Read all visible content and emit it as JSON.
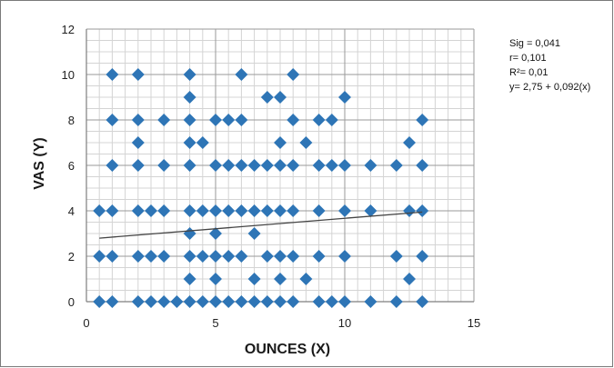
{
  "chart_data": {
    "type": "scatter",
    "title": "",
    "xlabel": "OUNCES (X)",
    "ylabel": "VAS (Y)",
    "xlim": [
      0,
      15
    ],
    "ylim": [
      0,
      12
    ],
    "x_ticks": [
      0,
      5,
      10,
      15
    ],
    "y_ticks": [
      0,
      2,
      4,
      6,
      8,
      10,
      12
    ],
    "grid": true,
    "marker_color": "#2e75b6",
    "trendline": {
      "intercept": 2.75,
      "slope": 0.092,
      "x_range": [
        0.5,
        13
      ]
    },
    "annotations": [
      "Sig = 0,041",
      "r= 0,101",
      "R²= 0,01",
      "y= 2,75 + 0,092(x)"
    ],
    "points": [
      [
        1,
        10
      ],
      [
        2,
        10
      ],
      [
        4,
        10
      ],
      [
        6,
        10
      ],
      [
        8,
        10
      ],
      [
        4,
        9
      ],
      [
        7,
        9
      ],
      [
        7.5,
        9
      ],
      [
        10,
        9
      ],
      [
        1,
        8
      ],
      [
        2,
        8
      ],
      [
        3,
        8
      ],
      [
        4,
        8
      ],
      [
        5,
        8
      ],
      [
        5.5,
        8
      ],
      [
        6,
        8
      ],
      [
        8,
        8
      ],
      [
        9,
        8
      ],
      [
        9.5,
        8
      ],
      [
        13,
        8
      ],
      [
        2,
        7
      ],
      [
        4,
        7
      ],
      [
        4.5,
        7
      ],
      [
        7.5,
        7
      ],
      [
        8.5,
        7
      ],
      [
        12.5,
        7
      ],
      [
        1,
        6
      ],
      [
        2,
        6
      ],
      [
        3,
        6
      ],
      [
        4,
        6
      ],
      [
        5,
        6
      ],
      [
        5.5,
        6
      ],
      [
        6,
        6
      ],
      [
        6.5,
        6
      ],
      [
        7,
        6
      ],
      [
        7.5,
        6
      ],
      [
        8,
        6
      ],
      [
        9,
        6
      ],
      [
        9.5,
        6
      ],
      [
        10,
        6
      ],
      [
        11,
        6
      ],
      [
        12,
        6
      ],
      [
        13,
        6
      ],
      [
        0.5,
        4
      ],
      [
        1,
        4
      ],
      [
        2,
        4
      ],
      [
        2.5,
        4
      ],
      [
        3,
        4
      ],
      [
        4,
        4
      ],
      [
        4.5,
        4
      ],
      [
        5,
        4
      ],
      [
        5.5,
        4
      ],
      [
        6,
        4
      ],
      [
        6.5,
        4
      ],
      [
        7,
        4
      ],
      [
        7.5,
        4
      ],
      [
        8,
        4
      ],
      [
        9,
        4
      ],
      [
        10,
        4
      ],
      [
        11,
        4
      ],
      [
        12.5,
        4
      ],
      [
        13,
        4
      ],
      [
        4,
        3
      ],
      [
        5,
        3
      ],
      [
        6.5,
        3
      ],
      [
        0.5,
        2
      ],
      [
        1,
        2
      ],
      [
        2,
        2
      ],
      [
        2.5,
        2
      ],
      [
        3,
        2
      ],
      [
        4,
        2
      ],
      [
        4.5,
        2
      ],
      [
        5,
        2
      ],
      [
        5.5,
        2
      ],
      [
        6,
        2
      ],
      [
        7,
        2
      ],
      [
        7.5,
        2
      ],
      [
        8,
        2
      ],
      [
        9,
        2
      ],
      [
        10,
        2
      ],
      [
        12,
        2
      ],
      [
        13,
        2
      ],
      [
        4,
        1
      ],
      [
        5,
        1
      ],
      [
        6.5,
        1
      ],
      [
        7.5,
        1
      ],
      [
        8.5,
        1
      ],
      [
        12.5,
        1
      ],
      [
        0.5,
        0
      ],
      [
        1,
        0
      ],
      [
        2,
        0
      ],
      [
        2.5,
        0
      ],
      [
        3,
        0
      ],
      [
        3.5,
        0
      ],
      [
        4,
        0
      ],
      [
        4.5,
        0
      ],
      [
        5,
        0
      ],
      [
        5.5,
        0
      ],
      [
        6,
        0
      ],
      [
        6.5,
        0
      ],
      [
        7,
        0
      ],
      [
        7.5,
        0
      ],
      [
        8,
        0
      ],
      [
        9,
        0
      ],
      [
        9.5,
        0
      ],
      [
        10,
        0
      ],
      [
        11,
        0
      ],
      [
        12,
        0
      ],
      [
        13,
        0
      ]
    ]
  }
}
